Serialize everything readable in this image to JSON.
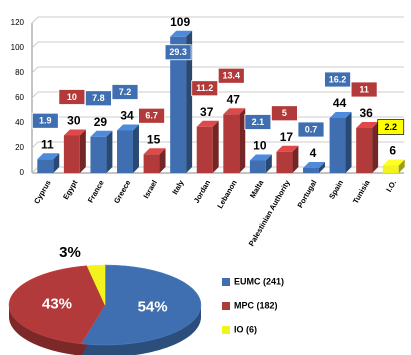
{
  "chart_data": [
    {
      "type": "bar",
      "categories": [
        "Cyprus",
        "Egypt",
        "France",
        "Greece",
        "Israel",
        "Italy",
        "Jordan",
        "Lebanon",
        "Malta",
        "Palestinian Authority",
        "Portugal",
        "Spain",
        "Tunisia",
        "I.O."
      ],
      "values": [
        11,
        30,
        29,
        34,
        15,
        109,
        37,
        47,
        10,
        17,
        4,
        44,
        36,
        6
      ],
      "colors": [
        "#3f6fb0",
        "#b23a3a",
        "#3f6fb0",
        "#3f6fb0",
        "#b23a3a",
        "#3f6fb0",
        "#b23a3a",
        "#b23a3a",
        "#3f6fb0",
        "#b23a3a",
        "#3f6fb0",
        "#3f6fb0",
        "#b23a3a",
        "#f2f21e"
      ],
      "percent_labels": [
        1.9,
        10,
        7.8,
        7.2,
        6.7,
        29.3,
        11.2,
        13.4,
        2.1,
        5,
        0.7,
        16.2,
        11,
        2.2
      ],
      "ylim": [
        0,
        120
      ],
      "yticks": [
        0,
        20,
        40,
        60,
        80,
        100,
        120
      ],
      "grid": true
    },
    {
      "type": "pie",
      "series": [
        {
          "name": "EUMC (241)",
          "color": "#3f6fb0",
          "values": [
            54
          ],
          "value_labels": [
            "54%"
          ]
        },
        {
          "name": "MPC (182)",
          "color": "#b23a3a",
          "values": [
            43
          ],
          "value_labels": [
            "43%"
          ]
        },
        {
          "name": "IO (6)",
          "color": "#f2f21e",
          "values": [
            3
          ],
          "value_labels": [
            "3%"
          ]
        }
      ]
    }
  ]
}
